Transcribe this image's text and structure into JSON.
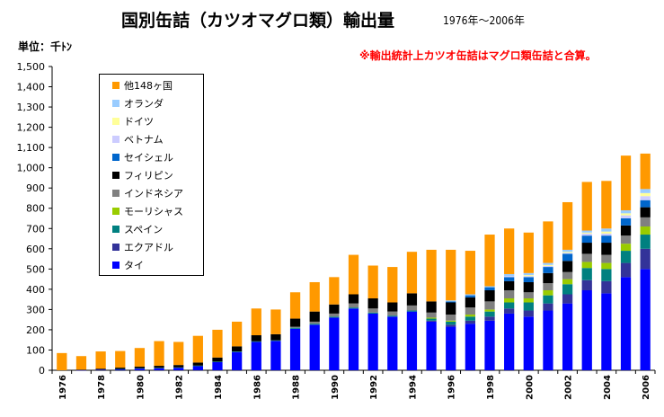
{
  "title": "国別缶詰（カツオマグロ類）輸出量",
  "subtitle": "1976年～2006年",
  "unit_label": "単位：千ﾄﾝ",
  "note": "※輸出統計上カツオ缶詰はマグロ類缶詰と合算。",
  "chart_data": {
    "type": "bar",
    "stacked": true,
    "ylim": [
      0,
      1500
    ],
    "yticks": [
      0,
      100,
      200,
      300,
      400,
      500,
      600,
      700,
      800,
      900,
      1000,
      1100,
      1200,
      1300,
      1400,
      1500
    ],
    "ytick_labels": [
      "0",
      "100",
      "200",
      "300",
      "400",
      "500",
      "600",
      "700",
      "800",
      "900",
      "1,000",
      "1,100",
      "1,200",
      "1,300",
      "1,400",
      "1,500"
    ],
    "grid": false,
    "legend_position": "upper-left",
    "categories": [
      "1976",
      "1977",
      "1978",
      "1979",
      "1980",
      "1981",
      "1982",
      "1983",
      "1984",
      "1985",
      "1986",
      "1987",
      "1988",
      "1989",
      "1990",
      "1991",
      "1992",
      "1993",
      "1994",
      "1995",
      "1996",
      "1997",
      "1998",
      "1999",
      "2000",
      "2001",
      "2002",
      "2003",
      "2004",
      "2005",
      "2006"
    ],
    "xtick_labels": [
      "1976",
      "",
      "1978",
      "",
      "1980",
      "",
      "1982",
      "",
      "1984",
      "",
      "1986",
      "",
      "1988",
      "",
      "1990",
      "",
      "1992",
      "",
      "1994",
      "",
      "1996",
      "",
      "1998",
      "",
      "2000",
      "",
      "2002",
      "",
      "2004",
      "",
      "2006"
    ],
    "series": [
      {
        "name": "タイ",
        "color": "#0000ff",
        "values": [
          0,
          1,
          3,
          5,
          8,
          10,
          12,
          20,
          40,
          90,
          140,
          145,
          205,
          225,
          260,
          305,
          280,
          265,
          290,
          240,
          215,
          230,
          245,
          280,
          265,
          295,
          330,
          395,
          380,
          460,
          500
        ]
      },
      {
        "name": "エクアドル",
        "color": "#333399",
        "values": [
          0,
          0,
          0,
          0,
          0,
          0,
          0,
          0,
          0,
          0,
          0,
          0,
          0,
          0,
          0,
          0,
          0,
          0,
          0,
          5,
          10,
          15,
          20,
          25,
          30,
          35,
          45,
          50,
          60,
          70,
          100
        ]
      },
      {
        "name": "スペイン",
        "color": "#008080",
        "values": [
          0,
          0,
          0,
          1,
          2,
          2,
          2,
          3,
          3,
          3,
          3,
          3,
          5,
          5,
          5,
          5,
          5,
          5,
          5,
          10,
          15,
          20,
          25,
          30,
          40,
          40,
          50,
          60,
          60,
          60,
          70
        ]
      },
      {
        "name": "モーリシャス",
        "color": "#99cc00",
        "values": [
          0,
          0,
          0,
          0,
          0,
          0,
          0,
          0,
          0,
          0,
          0,
          0,
          0,
          0,
          0,
          0,
          0,
          0,
          0,
          5,
          5,
          10,
          10,
          20,
          20,
          25,
          25,
          30,
          30,
          35,
          40
        ]
      },
      {
        "name": "インドネシア",
        "color": "#808080",
        "values": [
          0,
          0,
          0,
          0,
          0,
          0,
          0,
          0,
          0,
          0,
          0,
          0,
          5,
          10,
          15,
          20,
          20,
          20,
          25,
          25,
          30,
          35,
          40,
          40,
          30,
          35,
          35,
          40,
          40,
          40,
          45
        ]
      },
      {
        "name": "フィリピン",
        "color": "#000000",
        "values": [
          0,
          2,
          5,
          7,
          8,
          10,
          12,
          15,
          20,
          25,
          30,
          30,
          40,
          50,
          45,
          45,
          50,
          45,
          60,
          55,
          60,
          50,
          55,
          45,
          50,
          50,
          55,
          55,
          60,
          50,
          50
        ]
      },
      {
        "name": "セイシェル",
        "color": "#0066cc",
        "values": [
          0,
          0,
          0,
          0,
          0,
          0,
          0,
          0,
          0,
          0,
          0,
          0,
          0,
          0,
          0,
          0,
          0,
          0,
          0,
          0,
          5,
          10,
          15,
          20,
          25,
          30,
          35,
          35,
          35,
          35,
          35
        ]
      },
      {
        "name": "ベトナム",
        "color": "#ccccff",
        "values": [
          0,
          0,
          0,
          0,
          0,
          0,
          0,
          0,
          0,
          0,
          0,
          0,
          0,
          0,
          0,
          0,
          0,
          0,
          0,
          0,
          0,
          0,
          0,
          5,
          5,
          5,
          5,
          10,
          10,
          15,
          20
        ]
      },
      {
        "name": "ドイツ",
        "color": "#ffff99",
        "values": [
          0,
          0,
          0,
          0,
          0,
          0,
          0,
          0,
          0,
          0,
          0,
          0,
          0,
          0,
          0,
          0,
          0,
          0,
          0,
          0,
          0,
          0,
          0,
          0,
          5,
          5,
          5,
          5,
          10,
          10,
          15
        ]
      },
      {
        "name": "オランダ",
        "color": "#99ccff",
        "values": [
          0,
          0,
          0,
          0,
          0,
          0,
          0,
          0,
          0,
          0,
          0,
          0,
          0,
          0,
          0,
          0,
          0,
          0,
          0,
          0,
          5,
          5,
          5,
          10,
          10,
          10,
          10,
          10,
          15,
          15,
          20
        ]
      },
      {
        "name": "他148ヶ国",
        "color": "#ff9900",
        "values": [
          85,
          67,
          85,
          82,
          92,
          122,
          114,
          132,
          137,
          122,
          132,
          122,
          130,
          145,
          135,
          195,
          162,
          175,
          205,
          255,
          250,
          215,
          255,
          225,
          200,
          205,
          235,
          240,
          235,
          270,
          175
        ]
      }
    ]
  }
}
